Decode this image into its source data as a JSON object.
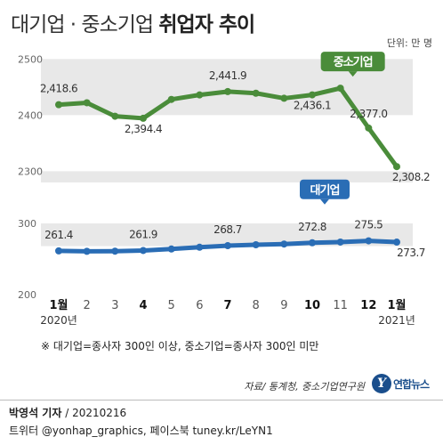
{
  "header": {
    "title_part1": "대기업 · 중소기업",
    "title_part2": "취업자 추이",
    "unit": "단위: 만 명"
  },
  "chart_data": [
    {
      "type": "line",
      "series": [
        {
          "name": "중소기업",
          "color": "#4a8c3a",
          "values": [
            2418.6,
            2422,
            2398,
            2394.4,
            2428,
            2436,
            2441.9,
            2439,
            2430,
            2436.1,
            2448,
            2377.0,
            2308.2
          ],
          "labels": [
            "2,418.6",
            "",
            "",
            "2,394.4",
            "",
            "",
            "2,441.9",
            "",
            "",
            "2,436.1",
            "",
            "2,377.0",
            "2,308.2"
          ]
        }
      ],
      "yticks": [
        "2500",
        "2400",
        "2300"
      ],
      "ylim": [
        2280,
        2510
      ]
    },
    {
      "type": "line",
      "series": [
        {
          "name": "대기업",
          "color": "#2a6db5",
          "values": [
            261.4,
            260.8,
            261.0,
            261.9,
            264.0,
            266.5,
            268.7,
            270.0,
            271.0,
            272.8,
            273.8,
            275.5,
            273.7
          ],
          "labels": [
            "261.4",
            "",
            "",
            "261.9",
            "",
            "",
            "268.7",
            "",
            "",
            "272.8",
            "",
            "275.5",
            "273.7"
          ]
        }
      ],
      "yticks": [
        "300",
        "200"
      ],
      "ylim": [
        195,
        305
      ]
    }
  ],
  "xaxis": {
    "ticks": [
      "1월",
      "2",
      "3",
      "4",
      "5",
      "6",
      "7",
      "8",
      "9",
      "10",
      "11",
      "12",
      "1월"
    ],
    "bold": [
      true,
      false,
      false,
      true,
      false,
      false,
      true,
      false,
      false,
      true,
      false,
      true,
      true
    ],
    "year_start": "2020년",
    "year_end": "2021년"
  },
  "footer": {
    "note": "※ 대기업=종사자 300인 이상, 중소기업=종사자 300인 미만",
    "source": "자료/ 통계청, 중소기업연구원",
    "logo_text": "연합뉴스",
    "author": "박영석 기자",
    "date": "/ 20210216",
    "social": "트위터 @yonhap_graphics, 페이스북 tuney.kr/LeYN1"
  },
  "colors": {
    "band": "#e8e8e8",
    "sme": "#4a8c3a",
    "large": "#2a6db5"
  }
}
